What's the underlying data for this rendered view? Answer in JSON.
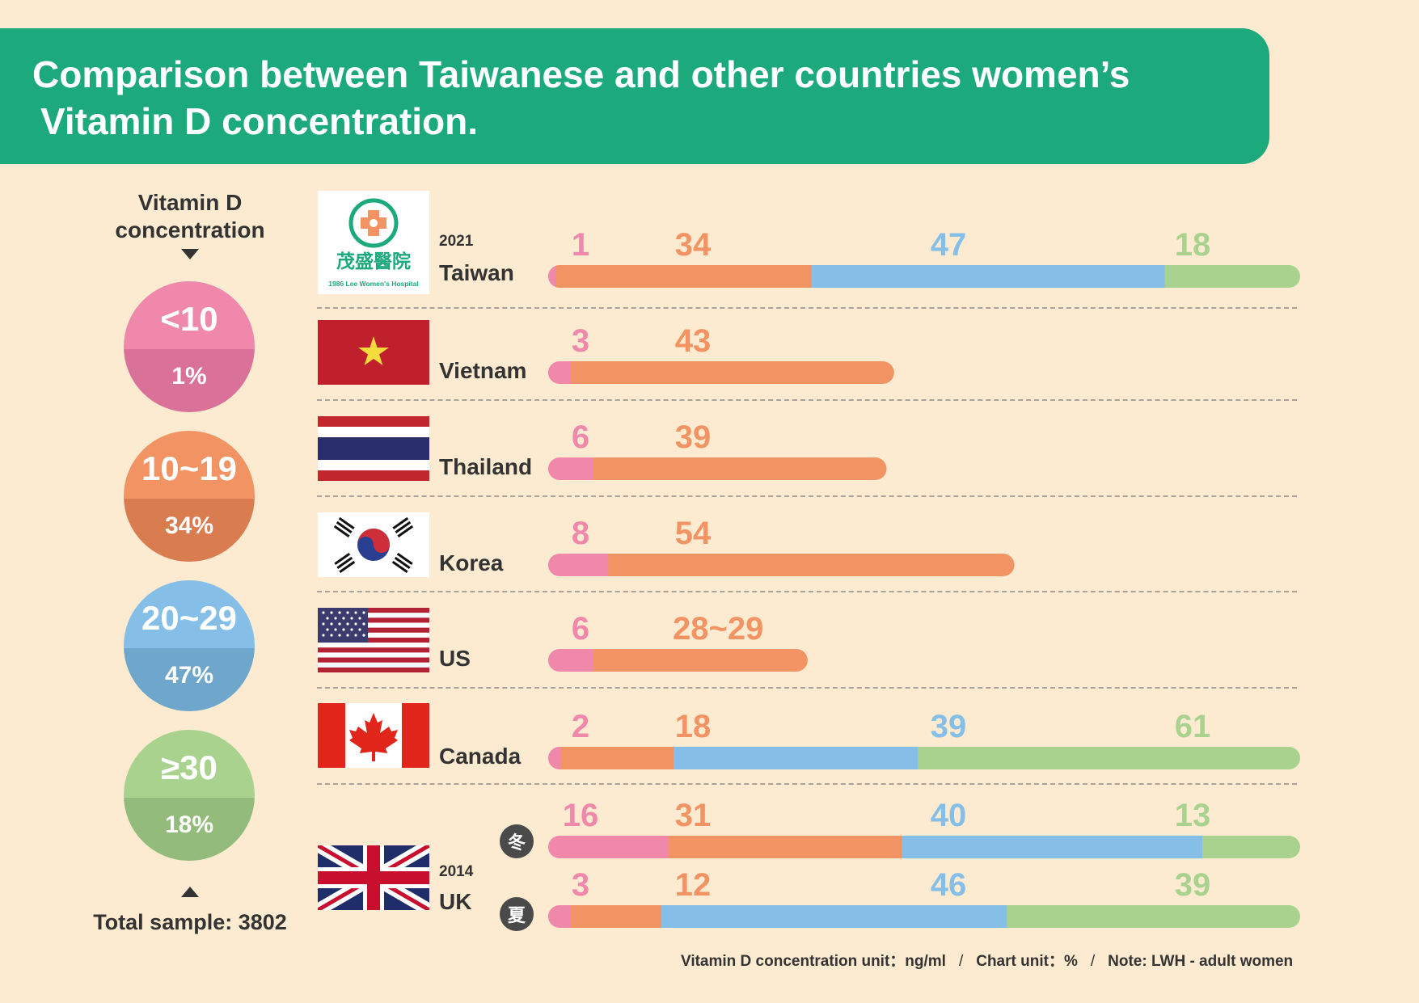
{
  "header": {
    "line1": "Comparison between Taiwanese and other countries women’s",
    "line2": "Vitamin D concentration."
  },
  "legend": {
    "title_line1": "Vitamin D",
    "title_line2": "concentration",
    "total": "Total sample: 3802",
    "items": [
      {
        "range": "<10",
        "pct": "1%",
        "color_top": "#ef88ab",
        "color_bottom": "#d97199"
      },
      {
        "range": "10~19",
        "pct": "34%",
        "color_top": "#f29363",
        "color_bottom": "#d97d51"
      },
      {
        "range": "20~29",
        "pct": "47%",
        "color_top": "#85bee7",
        "color_bottom": "#6ea6cc"
      },
      {
        "range": "≥30",
        "pct": "18%",
        "color_top": "#a9d28f",
        "color_bottom": "#93bb7b"
      }
    ]
  },
  "hospital": {
    "name_cn": "茂盛醫院",
    "name_en": "1986 Lee Women's Hospital"
  },
  "seasons": {
    "winter": "冬",
    "summer": "夏"
  },
  "footer": {
    "unit": "Vitamin D concentration unit：ng/ml",
    "chart_unit": "Chart unit：%",
    "note": "Note: LWH - adult women"
  },
  "chart_data": {
    "type": "bar",
    "orientation": "horizontal-stacked",
    "unit": "%",
    "category_colors": [
      "#ef88ab",
      "#f29363",
      "#85bee7",
      "#a9d28f"
    ],
    "rows": [
      {
        "country": "Taiwan",
        "year": "2021",
        "season": "",
        "values": [
          1,
          34,
          47,
          18
        ],
        "labels": [
          "1",
          "34",
          "47",
          "18"
        ]
      },
      {
        "country": "Vietnam",
        "year": "",
        "season": "",
        "values": [
          3,
          43
        ],
        "labels": [
          "3",
          "43"
        ]
      },
      {
        "country": "Thailand",
        "year": "",
        "season": "",
        "values": [
          6,
          39
        ],
        "labels": [
          "6",
          "39"
        ]
      },
      {
        "country": "Korea",
        "year": "",
        "season": "",
        "values": [
          8,
          54
        ],
        "labels": [
          "8",
          "54"
        ]
      },
      {
        "country": "US",
        "year": "",
        "season": "",
        "values": [
          6,
          28.5
        ],
        "labels": [
          "6",
          "28~29"
        ]
      },
      {
        "country": "Canada",
        "year": "",
        "season": "",
        "values": [
          2,
          18,
          39,
          61
        ],
        "labels": [
          "2",
          "18",
          "39",
          "61"
        ]
      },
      {
        "country": "UK",
        "year": "2014",
        "season": "冬",
        "values": [
          16,
          31,
          40,
          13
        ],
        "labels": [
          "16",
          "31",
          "40",
          "13"
        ]
      },
      {
        "country": "UK",
        "year": "2014",
        "season": "夏",
        "values": [
          3,
          12,
          46,
          39
        ],
        "labels": [
          "3",
          "12",
          "46",
          "39"
        ]
      }
    ]
  }
}
